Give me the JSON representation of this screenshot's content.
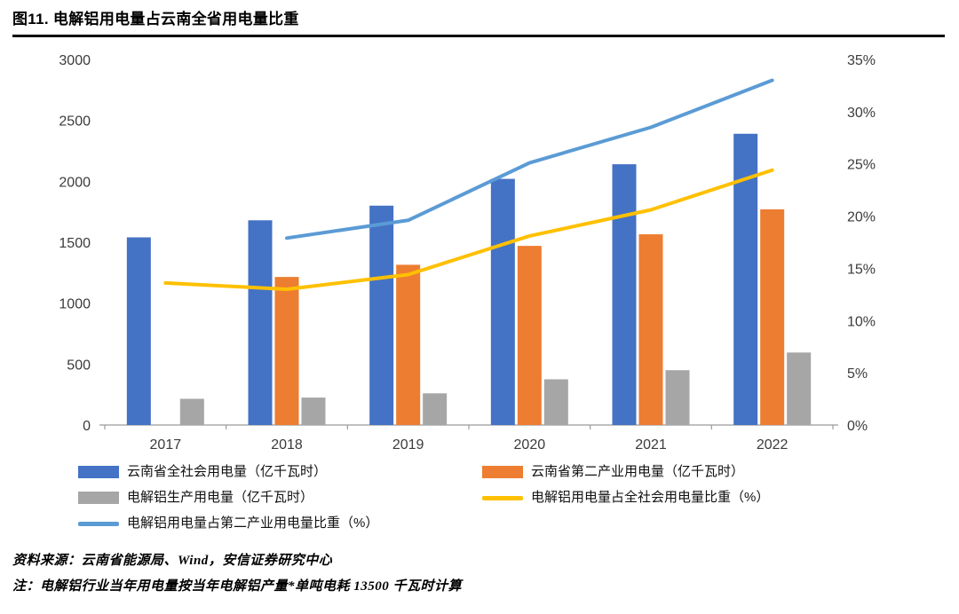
{
  "title": "图11. 电解铝用电量占云南全省用电量比重",
  "footer": {
    "source": "资料来源：云南省能源局、Wind，安信证券研究中心",
    "note": "注：电解铝行业当年用电量按当年电解铝产量*单吨电耗 13500 千瓦时计算"
  },
  "colors": {
    "bar_blue": "#4472C4",
    "bar_orange": "#ED7D31",
    "bar_gray": "#A6A6A6",
    "line_yellow": "#FFC000",
    "line_blue": "#5B9BD5",
    "axis_text": "#3b3b3b",
    "axis_line": "#9b9b9b",
    "title_rule": "#000000"
  },
  "chart_data": {
    "type": "bar+line",
    "categories": [
      "2017",
      "2018",
      "2019",
      "2020",
      "2021",
      "2022"
    ],
    "bar_series": [
      {
        "name": "云南省全社会用电量（亿千瓦时）",
        "color": "#4472C4",
        "axis": "left",
        "values": [
          1540,
          1680,
          1800,
          2020,
          2140,
          2390
        ]
      },
      {
        "name": "云南省第二产业用电量（亿千瓦时）",
        "color": "#ED7D31",
        "axis": "left",
        "values": [
          null,
          1215,
          1315,
          1470,
          1565,
          1770
        ]
      },
      {
        "name": "电解铝生产用电量（亿千瓦时）",
        "color": "#A6A6A6",
        "axis": "left",
        "values": [
          215,
          225,
          260,
          375,
          450,
          595
        ]
      }
    ],
    "line_series": [
      {
        "name": "电解铝用电量占全社会用电量比重（%）",
        "color": "#FFC000",
        "axis": "right",
        "values": [
          13.6,
          13.0,
          14.4,
          18.1,
          20.6,
          24.4
        ]
      },
      {
        "name": "电解铝用电量占第二产业用电量比重（%）",
        "color": "#5B9BD5",
        "axis": "right",
        "values": [
          null,
          17.9,
          19.6,
          25.1,
          28.5,
          33.0
        ]
      }
    ],
    "left_axis": {
      "min": 0,
      "max": 3000,
      "step": 500
    },
    "right_axis": {
      "min": 0,
      "max": 35,
      "step": 5,
      "suffix": "%"
    },
    "grid": false,
    "legend_position": "bottom"
  }
}
